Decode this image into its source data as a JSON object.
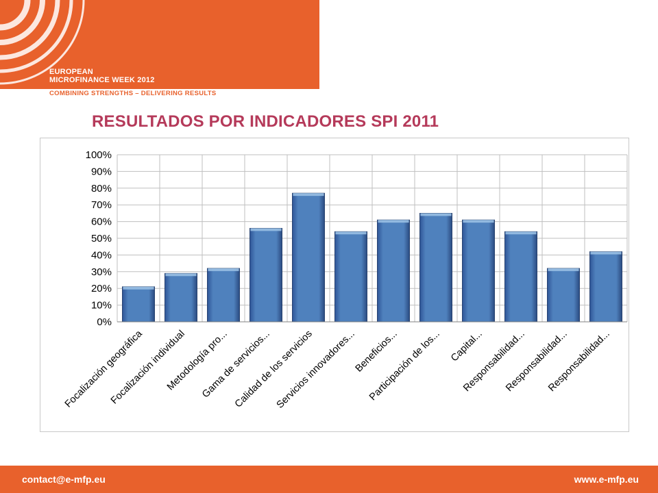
{
  "header": {
    "brand_line1": "EUROPEAN",
    "brand_line2": "MICROFINANCE WEEK 2012",
    "slogan": "COMBINING STRENGTHS – DELIVERING RESULTS",
    "accent_color": "#e8612c"
  },
  "slide": {
    "title": "RESULTADOS POR INDICADORES SPI 2011",
    "title_color": "#b53a5a"
  },
  "chart_data": {
    "type": "bar",
    "categories": [
      "Focalización geográfica",
      "Focalización individual",
      "Metodología pro...",
      "Gama de servicios...",
      "Calidad de los servicios",
      "Servicios innovadores...",
      "Beneficios...",
      "Participación de los...",
      "Capital...",
      "Responsabilidad...",
      "Responsabilidad...",
      "Responsabilidad..."
    ],
    "values": [
      21,
      29,
      32,
      56,
      77,
      54,
      61,
      65,
      61,
      54,
      32,
      42
    ],
    "y_ticks": [
      "0%",
      "10%",
      "20%",
      "30%",
      "40%",
      "50%",
      "60%",
      "70%",
      "80%",
      "90%",
      "100%"
    ],
    "ylim": [
      0,
      100
    ],
    "grid": true,
    "bar_color": "#4f81bd"
  },
  "footer": {
    "contact": "contact@e-mfp.eu",
    "website": "www.e-mfp.eu"
  }
}
